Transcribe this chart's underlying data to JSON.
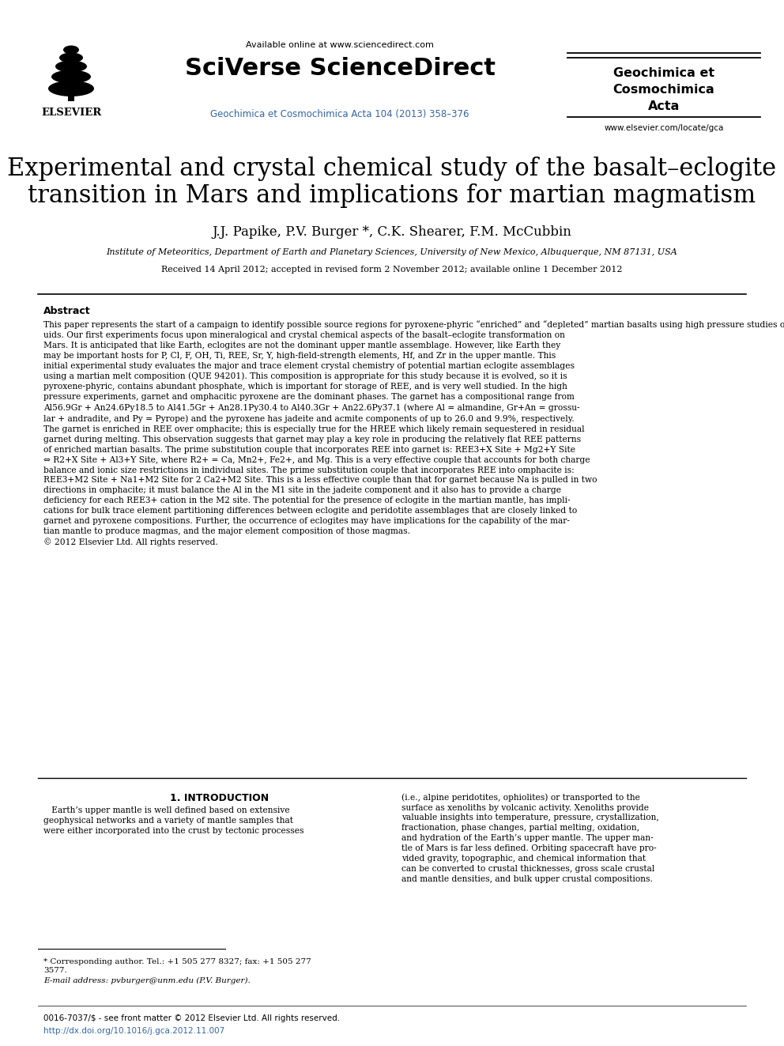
{
  "bg_color": "#ffffff",
  "header_available_text": "Available online at www.sciencedirect.com",
  "header_sciverse": "SciVerse ScienceDirect",
  "header_journal_blue": "Geochimica et Cosmochimica Acta 104 (2013) 358–376",
  "header_journal_right_bold": "Geochimica et\nCosmochimica\nActa",
  "header_website": "www.elsevier.com/locate/gca",
  "elsevier_label": "ELSEVIER",
  "title_line1": "Experimental and crystal chemical study of the basalt–eclogite",
  "title_line2": "transition in Mars and implications for martian magmatism",
  "authors": "J.J. Papike, P.V. Burger *, C.K. Shearer, F.M. McCubbin",
  "affiliation": "Institute of Meteoritics, Department of Earth and Planetary Sciences, University of New Mexico, Albuquerque, NM 87131, USA",
  "received": "Received 14 April 2012; accepted in revised form 2 November 2012; available online 1 December 2012",
  "abstract_label": "Abstract",
  "abstract_text": "This paper represents the start of a campaign to identify possible source regions for pyroxene-phyric “enriched” and “depleted” martian basalts using high pressure studies on martian meteorite compositions that represent liquids or near liq-\nuids. Our first experiments focus upon mineralogical and crystal chemical aspects of the basalt–eclogite transformation on\nMars. It is anticipated that like Earth, eclogites are not the dominant upper mantle assemblage. However, like Earth they\nmay be important hosts for P, Cl, F, OH, Ti, REE, Sr, Y, high-field-strength elements, Hf, and Zr in the upper mantle. This\ninitial experimental study evaluates the major and trace element crystal chemistry of potential martian eclogite assemblages\nusing a martian melt composition (QUE 94201). This composition is appropriate for this study because it is evolved, so it is\npyroxene-phyric, contains abundant phosphate, which is important for storage of REE, and is very well studied. In the high\npressure experiments, garnet and omphacitic pyroxene are the dominant phases. The garnet has a compositional range from\nAl56.9Gr + An24.6Py18.5 to Al41.5Gr + An28.1Py30.4 to Al40.3Gr + An22.6Py37.1 (where Al = almandine, Gr+An = grossu-\nlar + andradite, and Py = Pyrope) and the pyroxene has jadeite and acmite components of up to 26.0 and 9.9%, respectively.\nThe garnet is enriched in REE over omphacite; this is especially true for the HREE which likely remain sequestered in residual\ngarnet during melting. This observation suggests that garnet may play a key role in producing the relatively flat REE patterns\nof enriched martian basalts. The prime substitution couple that incorporates REE into garnet is: REE3+X Site + Mg2+Y Site\n⇔ R2+X Site + Al3+Y Site, where R2+ = Ca, Mn2+, Fe2+, and Mg. This is a very effective couple that accounts for both charge\nbalance and ionic size restrictions in individual sites. The prime substitution couple that incorporates REE into omphacite is:\nREE3+M2 Site + Na1+M2 Site for 2 Ca2+M2 Site. This is a less effective couple than that for garnet because Na is pulled in two\ndirections in omphacite; it must balance the Al in the M1 site in the jadeite component and it also has to provide a charge\ndeficiency for each REE3+ cation in the M2 site. The potential for the presence of eclogite in the martian mantle, has impli-\ncations for bulk trace element partitioning differences between eclogite and peridotite assemblages that are closely linked to\ngarnet and pyroxene compositions. Further, the occurrence of eclogites may have implications for the capability of the mar-\ntian mantle to produce magmas, and the major element composition of those magmas.\n© 2012 Elsevier Ltd. All rights reserved.",
  "section1_title": "1. INTRODUCTION",
  "section1_col1": "   Earth’s upper mantle is well defined based on extensive\ngeophysical networks and a variety of mantle samples that\nwere either incorporated into the crust by tectonic processes",
  "section1_col2": "(i.e., alpine peridotites, ophiolites) or transported to the\nsurface as xenoliths by volcanic activity. Xenoliths provide\nvaluable insights into temperature, pressure, crystallization,\nfractionation, phase changes, partial melting, oxidation,\nand hydration of the Earth’s upper mantle. The upper man-\ntle of Mars is far less defined. Orbiting spacecraft have pro-\nvided gravity, topographic, and chemical information that\ncan be converted to crustal thicknesses, gross scale crustal\nand mantle densities, and bulk upper crustal compositions.",
  "footnote_star": "* Corresponding author. Tel.: +1 505 277 8327; fax: +1 505 277\n3577.",
  "footnote_email": "E-mail address: pvburger@unm.edu (P.V. Burger).",
  "footer_left": "0016-7037/$ - see front matter © 2012 Elsevier Ltd. All rights reserved.",
  "footer_doi": "http://dx.doi.org/10.1016/j.gca.2012.11.007",
  "blue_color": "#3465a4",
  "sciverse_color": "#000000"
}
